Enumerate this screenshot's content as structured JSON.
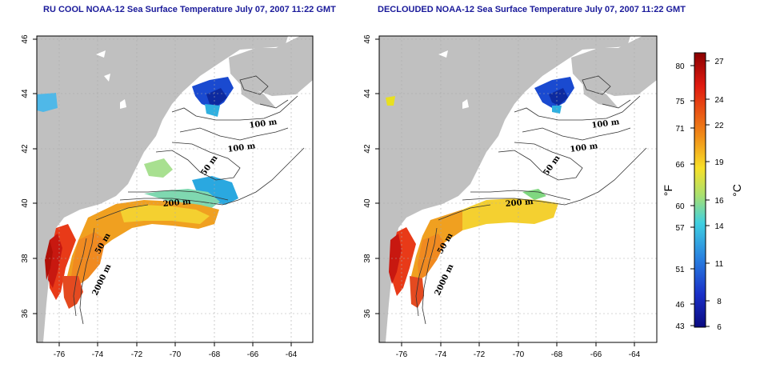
{
  "maps": [
    {
      "title": "RU COOL NOAA-12 Sea Surface Temperature July 07, 2007 11:22 GMT",
      "contour_labels": [
        "100 m",
        "100 m",
        "50 m",
        "200 m",
        "50 m",
        "2000 m"
      ]
    },
    {
      "title": "DECLOUDED NOAA-12 Sea Surface Temperature July 07, 2007 11:22 GMT",
      "contour_labels": [
        "100 m",
        "100 m",
        "50 m",
        "200 m",
        "50 m",
        "2000 m"
      ]
    }
  ],
  "axes": {
    "lon_ticks": [
      "-76",
      "-74",
      "-72",
      "-70",
      "-68",
      "-66",
      "-64"
    ],
    "lat_ticks": [
      "46",
      "44",
      "42",
      "40",
      "38",
      "36"
    ]
  },
  "colorbar": {
    "fahrenheit_ticks": [
      "80",
      "75",
      "71",
      "66",
      "60",
      "57",
      "51",
      "46",
      "43"
    ],
    "celsius_ticks": [
      "27",
      "24",
      "22",
      "19",
      "16",
      "14",
      "11",
      "8",
      "6"
    ],
    "f_unit": "°F",
    "c_unit": "°C"
  },
  "colors": {
    "land": "#c0c0c0",
    "title": "#1a1a9a",
    "warm": "#d42a1a",
    "cool": "#1e3cc8"
  }
}
